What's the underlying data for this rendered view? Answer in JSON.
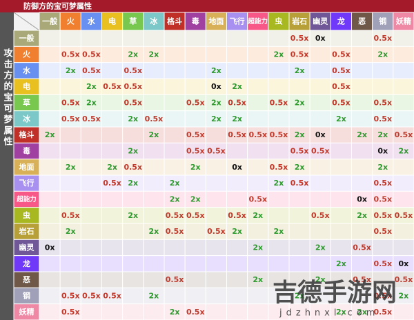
{
  "header": {
    "title": "防御方的宝可梦属性",
    "row_axis_label": "攻击方的宝可梦属性"
  },
  "table": {
    "columns": [
      "一般",
      "火",
      "水",
      "电",
      "草",
      "冰",
      "格斗",
      "毒",
      "地面",
      "飞行",
      "超能力",
      "虫",
      "岩石",
      "幽灵",
      "龙",
      "恶",
      "钢",
      "妖精"
    ],
    "colors": [
      "#a8a878",
      "#f08030",
      "#6890f0",
      "#e8c020",
      "#78c850",
      "#7cc8c8",
      "#c03028",
      "#a040a0",
      "#d8b058",
      "#a890f0",
      "#f85888",
      "#a8b820",
      "#b8a038",
      "#705898",
      "#7038f8",
      "#705848",
      "#a0a0b8",
      "#ee88a4"
    ],
    "rows": [
      {
        "type": "一般",
        "cells": [
          null,
          null,
          null,
          null,
          null,
          null,
          null,
          null,
          null,
          null,
          null,
          null,
          "0.5x",
          "0x",
          null,
          null,
          "0.5x",
          null
        ]
      },
      {
        "type": "火",
        "cells": [
          null,
          "0.5x",
          "0.5x",
          null,
          "2x",
          "2x",
          null,
          null,
          null,
          null,
          null,
          "2x",
          "0.5x",
          null,
          "0.5x",
          null,
          "2x",
          null
        ]
      },
      {
        "type": "水",
        "cells": [
          null,
          "2x",
          "0.5x",
          null,
          "0.5x",
          null,
          null,
          null,
          "2x",
          null,
          null,
          null,
          "2x",
          null,
          "0.5x",
          null,
          null,
          null
        ]
      },
      {
        "type": "电",
        "cells": [
          null,
          null,
          "2x",
          "0.5x",
          "0.5x",
          null,
          null,
          null,
          "0x",
          "2x",
          null,
          null,
          null,
          null,
          "0.5x",
          null,
          null,
          null
        ]
      },
      {
        "type": "草",
        "cells": [
          null,
          "0.5x",
          "2x",
          null,
          "0.5x",
          null,
          null,
          "0.5x",
          "2x",
          "0.5x",
          null,
          "0.5x",
          "2x",
          null,
          "0.5x",
          null,
          "0.5x",
          null
        ]
      },
      {
        "type": "冰",
        "cells": [
          null,
          "0.5x",
          "0.5x",
          null,
          "2x",
          "0.5x",
          null,
          null,
          "2x",
          "2x",
          null,
          null,
          null,
          null,
          "2x",
          null,
          "0.5x",
          null
        ]
      },
      {
        "type": "格斗",
        "cells": [
          "2x",
          null,
          null,
          null,
          null,
          "2x",
          null,
          "0.5x",
          null,
          "0.5x",
          "0.5x",
          "0.5x",
          "2x",
          "0x",
          null,
          "2x",
          "2x",
          "0.5x"
        ]
      },
      {
        "type": "毒",
        "cells": [
          null,
          null,
          null,
          null,
          "2x",
          null,
          null,
          "0.5x",
          "0.5x",
          null,
          null,
          null,
          "0.5x",
          "0.5x",
          null,
          null,
          "0x",
          "2x"
        ]
      },
      {
        "type": "地面",
        "cells": [
          null,
          "2x",
          null,
          "2x",
          "0.5x",
          null,
          null,
          "2x",
          null,
          "0x",
          null,
          "0.5x",
          "2x",
          null,
          null,
          null,
          "2x",
          null
        ]
      },
      {
        "type": "飞行",
        "cells": [
          null,
          null,
          null,
          "0.5x",
          "2x",
          null,
          "2x",
          null,
          null,
          null,
          null,
          "2x",
          "0.5x",
          null,
          null,
          null,
          "0.5x",
          null
        ]
      },
      {
        "type": "超能力",
        "cells": [
          null,
          null,
          null,
          null,
          null,
          null,
          "2x",
          "2x",
          null,
          null,
          "0.5x",
          null,
          null,
          null,
          null,
          "0x",
          "0.5x",
          null
        ]
      },
      {
        "type": "虫",
        "cells": [
          null,
          "0.5x",
          null,
          null,
          "2x",
          null,
          "0.5x",
          "0.5x",
          null,
          "0.5x",
          "2x",
          null,
          null,
          "0.5x",
          null,
          "2x",
          "0.5x",
          "0.5x"
        ]
      },
      {
        "type": "岩石",
        "cells": [
          null,
          "2x",
          null,
          null,
          null,
          "2x",
          "0.5x",
          null,
          "0.5x",
          "2x",
          null,
          "2x",
          null,
          null,
          null,
          null,
          "0.5x",
          null
        ]
      },
      {
        "type": "幽灵",
        "cells": [
          "0x",
          null,
          null,
          null,
          null,
          null,
          null,
          null,
          null,
          null,
          "2x",
          null,
          null,
          "2x",
          null,
          "0.5x",
          null,
          null
        ]
      },
      {
        "type": "龙",
        "cells": [
          null,
          null,
          null,
          null,
          null,
          null,
          null,
          null,
          null,
          null,
          null,
          null,
          null,
          null,
          "2x",
          null,
          "0.5x",
          "0x"
        ]
      },
      {
        "type": "恶",
        "cells": [
          null,
          null,
          null,
          null,
          null,
          null,
          "0.5x",
          null,
          null,
          null,
          "2x",
          null,
          null,
          "2x",
          null,
          "0.5x",
          null,
          "0.5x"
        ]
      },
      {
        "type": "钢",
        "cells": [
          null,
          "0.5x",
          "0.5x",
          "0.5x",
          null,
          "2x",
          null,
          null,
          null,
          null,
          null,
          null,
          "2x",
          null,
          null,
          null,
          "0.5x",
          "2x"
        ]
      },
      {
        "type": "妖精",
        "cells": [
          null,
          "0.5x",
          null,
          null,
          null,
          null,
          "2x",
          "0.5x",
          null,
          null,
          null,
          null,
          null,
          null,
          "2x",
          "2x",
          "0.5x",
          null
        ]
      }
    ]
  },
  "watermark": {
    "text": "吉德手游网",
    "url": "jdzhnxl.com"
  }
}
